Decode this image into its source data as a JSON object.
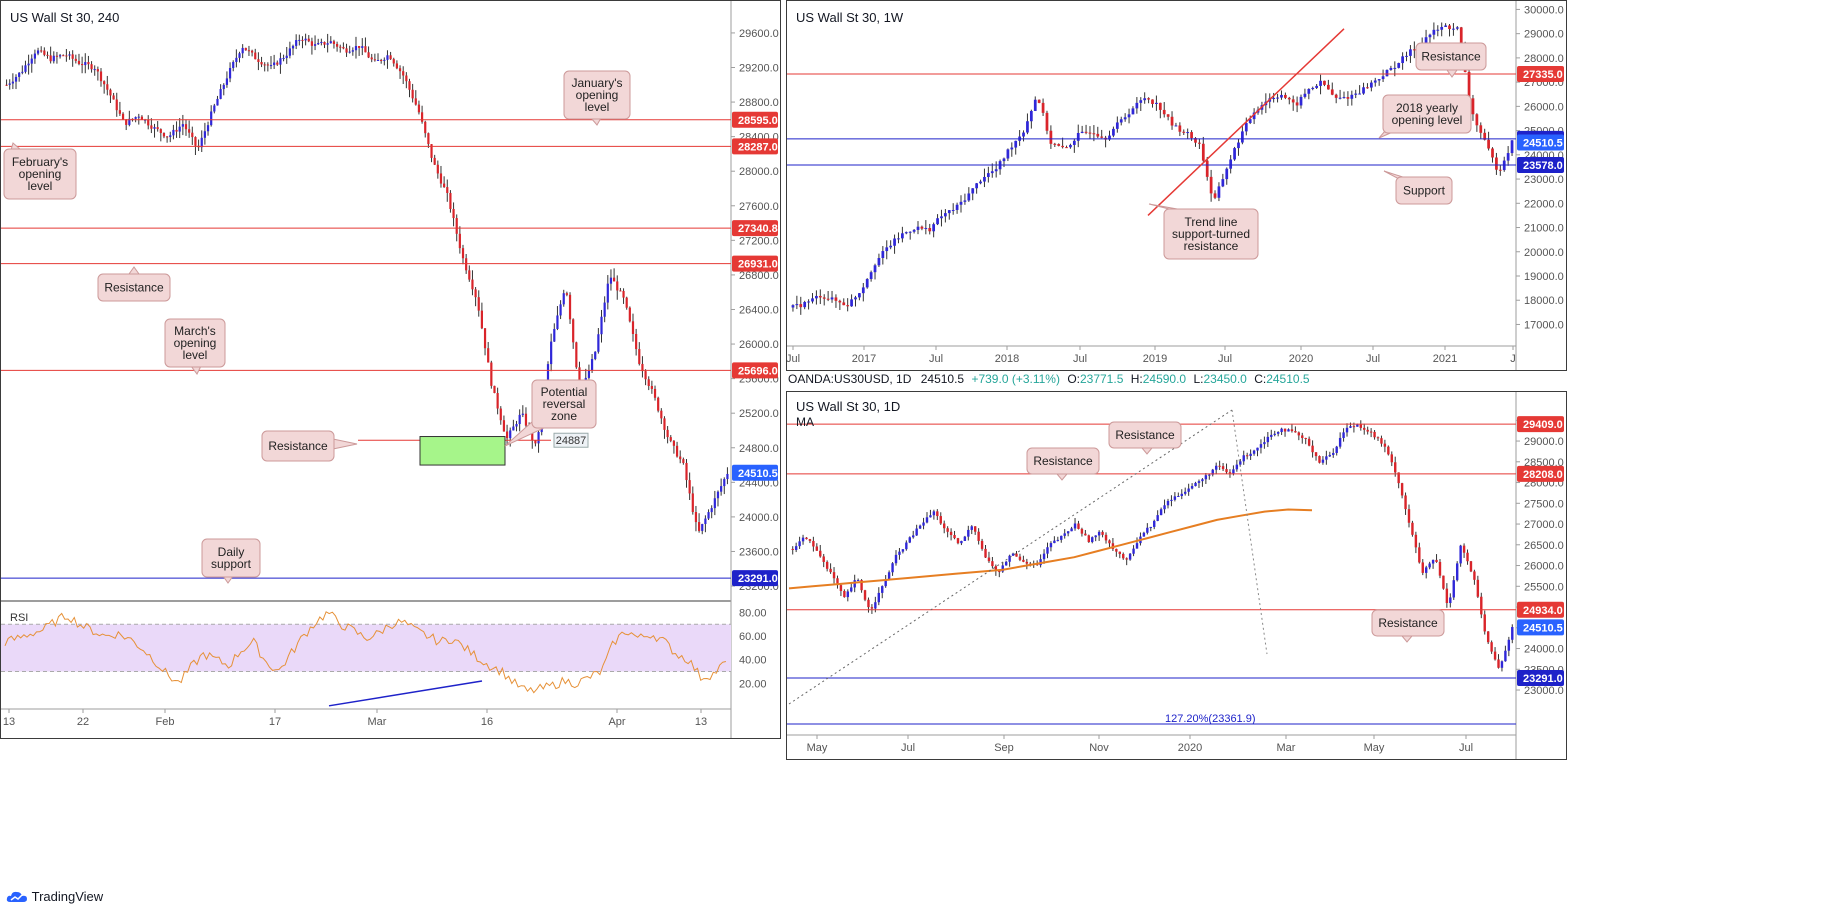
{
  "panes": {
    "h4": {
      "title": "US Wall St 30, 240"
    },
    "w1": {
      "title": "US Wall St 30, 1W"
    },
    "d1": {
      "title": "US Wall St 30, 1D",
      "ma_label": "MA"
    },
    "rsi": {
      "label": "RSI"
    }
  },
  "ohlc_bar": {
    "symbol": "OANDA:US30USD, 1D",
    "last": "24510.5",
    "change": "+739.0 (+3.11%)",
    "o_label": "O:",
    "o": "23771.5",
    "h_label": "H:",
    "h": "24590.0",
    "l_label": "L:",
    "l": "23450.0",
    "c_label": "C:",
    "c": "24510.5"
  },
  "footer": {
    "brand": "TradingView"
  },
  "colors": {
    "resistance": "#e53935",
    "support": "#1e22c9",
    "price_tag": "#2962ff",
    "zone": "#a6f58a",
    "callout_bg": "#f2d7d7",
    "ma": "#e67e22",
    "rsi_line": "#e69138",
    "rsi_band": "#ead9f9"
  },
  "chart_data": [
    {
      "id": "h4",
      "type": "candlestick",
      "title": "US Wall St 30, 240",
      "ylim": [
        23050,
        29900
      ],
      "yticks": [
        23200,
        23600,
        24000,
        24400,
        24800,
        25200,
        25600,
        26000,
        26400,
        26800,
        27200,
        27600,
        28000,
        28400,
        28800,
        29200,
        29600
      ],
      "xticks": [
        "13",
        "22",
        "Feb",
        "17",
        "Mar",
        "16",
        "Apr",
        "13"
      ],
      "price_path": [
        29000,
        29150,
        29400,
        29300,
        29350,
        29250,
        29200,
        28900,
        28550,
        28650,
        28500,
        28400,
        28550,
        28250,
        28700,
        29100,
        29450,
        29300,
        29200,
        29350,
        29550,
        29450,
        29500,
        29400,
        29450,
        29250,
        29350,
        29100,
        28700,
        28100,
        27700,
        27000,
        26500,
        25500,
        24900,
        25200,
        24800,
        26000,
        26700,
        25400,
        25900,
        26800,
        26500,
        25800,
        25400,
        24900,
        24600,
        23800,
        24150,
        24510.5
      ],
      "levels": [
        {
          "value": 28595.0,
          "label": "28595.0",
          "kind": "resistance"
        },
        {
          "value": 28287.0,
          "label": "28287.0",
          "kind": "resistance"
        },
        {
          "value": 27340.8,
          "label": "27340.8",
          "kind": "resistance"
        },
        {
          "value": 26931.0,
          "label": "26931.0",
          "kind": "resistance"
        },
        {
          "value": 25696.0,
          "label": "25696.0",
          "kind": "resistance"
        },
        {
          "value": 24887,
          "label": "24887",
          "kind": "resistance-short"
        },
        {
          "value": 23291.0,
          "label": "23291.0",
          "kind": "support"
        }
      ],
      "current_price": {
        "value": 24510.5,
        "label": "24510.5"
      },
      "zone": {
        "from": 24600,
        "to": 24930,
        "label": "Potential reversal zone"
      },
      "annotations": [
        "January's opening level",
        "February's opening level",
        "Resistance",
        "March's opening level",
        "Resistance",
        "Potential reversal zone",
        "Daily support"
      ]
    },
    {
      "id": "rsi",
      "type": "line",
      "title": "",
      "ylim": [
        0,
        88
      ],
      "yticks": [
        20,
        40,
        60,
        80
      ],
      "band": [
        30,
        70
      ],
      "values": [
        55,
        58,
        62,
        65,
        72,
        78,
        70,
        65,
        60,
        62,
        58,
        50,
        40,
        28,
        20,
        34,
        45,
        40,
        35,
        48,
        55,
        38,
        30,
        45,
        60,
        72,
        80,
        70,
        65,
        58,
        62,
        70,
        72,
        65,
        60,
        55,
        58,
        50,
        42,
        35,
        30,
        20,
        13,
        15,
        18,
        22,
        20,
        25,
        30,
        55,
        65,
        58,
        62,
        56,
        45,
        40,
        25,
        28,
        38
      ],
      "label": "RSI"
    },
    {
      "id": "w1",
      "type": "candlestick",
      "title": "US Wall St 30, 1W",
      "ylim": [
        16400,
        30100
      ],
      "yticks": [
        17000,
        18000,
        19000,
        20000,
        21000,
        22000,
        23000,
        24000,
        25000,
        26000,
        27000,
        28000,
        29000,
        30000
      ],
      "xticks": [
        "Jul",
        "2017",
        "Jul",
        "2018",
        "Jul",
        "2019",
        "Jul",
        "2020",
        "Jul",
        "2021",
        "J"
      ],
      "price_path": [
        17700,
        17900,
        18200,
        18000,
        17800,
        18400,
        19500,
        20200,
        20700,
        21000,
        20900,
        21500,
        21800,
        22400,
        23100,
        23400,
        24300,
        25000,
        26500,
        24500,
        24200,
        24800,
        25000,
        24700,
        25300,
        25900,
        26400,
        26000,
        25200,
        24900,
        24400,
        22000,
        23500,
        24800,
        25800,
        26300,
        26500,
        26000,
        26700,
        27000,
        26300,
        26400,
        26700,
        27100,
        27500,
        28000,
        28500,
        29000,
        29300,
        29200,
        25800,
        24500,
        23300,
        24510.5
      ],
      "levels": [
        {
          "value": 27335.0,
          "label": "27335.0",
          "kind": "resistance"
        },
        {
          "value": 24660.0,
          "label": "24660.0",
          "kind": "support"
        },
        {
          "value": 23578.0,
          "label": "23578.0",
          "kind": "support"
        }
      ],
      "current_price": {
        "value": 24510.5,
        "label": "24510.5"
      },
      "trendline": {
        "from": {
          "t": 0.47,
          "v": 21500
        },
        "to": {
          "t": 0.73,
          "v": 29200
        }
      },
      "annotations": [
        "Resistance",
        "2018 yearly opening level",
        "Support",
        "Trend line support-turned resistance"
      ]
    },
    {
      "id": "d1",
      "type": "candlestick",
      "title": "US Wall St 30, 1D",
      "ylim": [
        22350,
        29700
      ],
      "yticks": [
        23000,
        23500,
        24000,
        24500,
        25000,
        25500,
        26000,
        26500,
        27000,
        27500,
        28000,
        28500,
        29000,
        29500
      ],
      "xticks": [
        "May",
        "Jul",
        "Sep",
        "Nov",
        "2020",
        "Mar",
        "May",
        "Jul"
      ],
      "price_path": [
        26400,
        26700,
        26300,
        25800,
        25200,
        25700,
        24900,
        25500,
        26200,
        26600,
        27000,
        27300,
        26800,
        26500,
        27000,
        26200,
        25800,
        26300,
        26100,
        26000,
        26500,
        26700,
        27000,
        26600,
        26800,
        26400,
        26100,
        26700,
        27000,
        27500,
        27700,
        27900,
        28100,
        28400,
        28200,
        28600,
        28800,
        29100,
        29300,
        29200,
        29000,
        28500,
        28700,
        29300,
        29400,
        29200,
        28900,
        28200,
        27000,
        25800,
        26200,
        25000,
        26500,
        25700,
        24200,
        23500,
        24510.5
      ],
      "moving_average": [
        25450,
        25500,
        25550,
        25600,
        25650,
        25700,
        25750,
        25800,
        25850,
        25900,
        26000,
        26100,
        26200,
        26350,
        26500,
        26650,
        26800,
        26950,
        27100,
        27200,
        27300,
        27350,
        27330
      ],
      "levels": [
        {
          "value": 29409.0,
          "label": "29409.0",
          "kind": "resistance"
        },
        {
          "value": 28208.0,
          "label": "28208.0",
          "kind": "resistance"
        },
        {
          "value": 24934.0,
          "label": "24934.0",
          "kind": "resistance"
        },
        {
          "value": 23291.0,
          "label": "23291.0",
          "kind": "support"
        }
      ],
      "current_price": {
        "value": 24510.5,
        "label": "24510.5"
      },
      "fib_label": "127.20%(23361.9)",
      "annotations": [
        "Resistance",
        "Resistance",
        "Resistance"
      ]
    }
  ]
}
